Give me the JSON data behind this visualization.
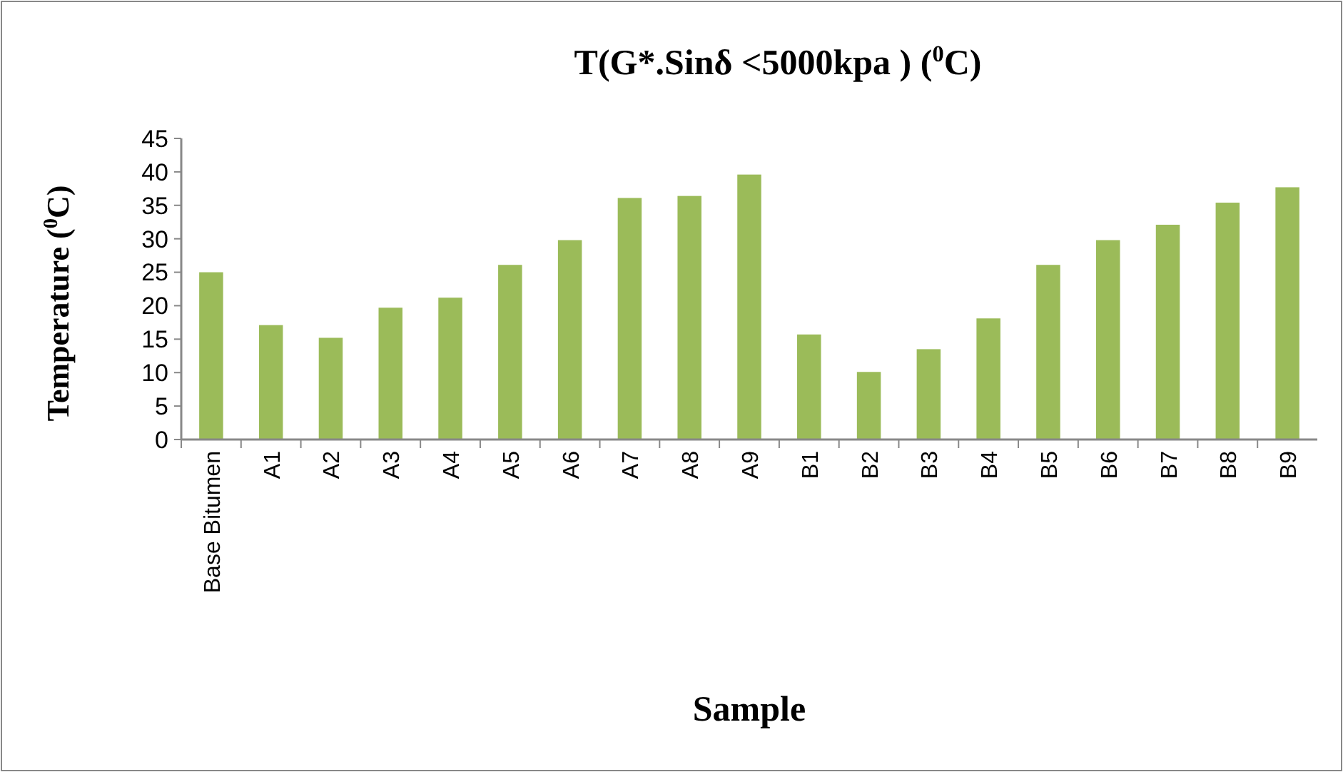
{
  "chart_data": {
    "type": "bar",
    "title": "T(G*.Sinδ <5000kpa ) ($^{0}$C)",
    "xlabel": "Sample",
    "ylabel": "Temperature ($^{0}$C)",
    "categories": [
      "Base Bitumen",
      "A1",
      "A2",
      "A3",
      "A4",
      "A5",
      "A6",
      "A7",
      "A8",
      "A9",
      "B1",
      "B2",
      "B3",
      "B4",
      "B5",
      "B6",
      "B7",
      "B8",
      "B9"
    ],
    "values": [
      25.0,
      17.1,
      15.2,
      19.7,
      21.2,
      26.1,
      29.8,
      36.1,
      36.4,
      39.6,
      15.7,
      10.1,
      13.5,
      18.1,
      26.1,
      29.8,
      32.1,
      35.4,
      37.7
    ],
    "color": "#9bbb59",
    "ylim": [
      0,
      45
    ],
    "yticks": [
      0,
      5,
      10,
      15,
      20,
      25,
      30,
      35,
      40,
      45
    ],
    "grid": false
  }
}
